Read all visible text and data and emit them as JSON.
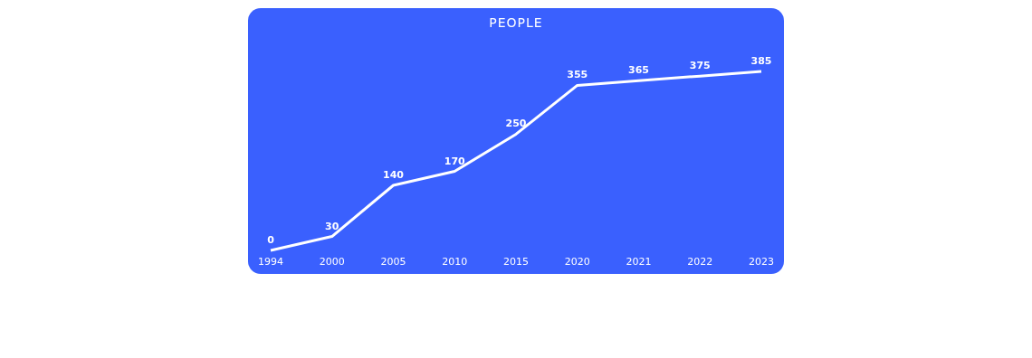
{
  "chart_data": {
    "type": "line",
    "title": "PEOPLE",
    "categories": [
      "1994",
      "2000",
      "2005",
      "2010",
      "2015",
      "2020",
      "2021",
      "2022",
      "2023"
    ],
    "values": [
      0,
      30,
      140,
      170,
      250,
      355,
      365,
      375,
      385
    ],
    "color": "#ffffff",
    "data_labels": true
  }
}
